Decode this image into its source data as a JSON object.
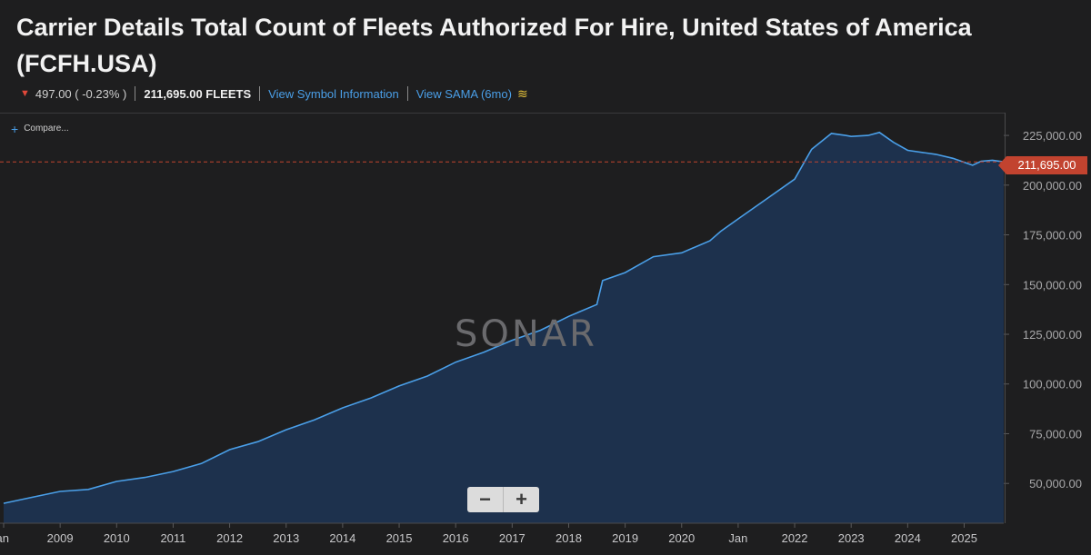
{
  "header": {
    "title": "Carrier Details Total Count of Fleets Authorized For Hire, United States of America (FCFH.USA)",
    "change": "497.00 ( -0.23% )",
    "value_label": "211,695.00 FLEETS",
    "link_symbol": "View Symbol Information",
    "link_sama": "View SAMA (6mo)"
  },
  "toolbar": {
    "compare_label": "Compare..."
  },
  "watermark": "SONAR",
  "zoom": {
    "minus": "−",
    "plus": "+"
  },
  "colors": {
    "line": "#4a9fe8",
    "fill": "#1d3556",
    "current": "#c2432f",
    "down": "#e0483a"
  },
  "chart_data": {
    "type": "area",
    "title": "Carrier Details Total Count of Fleets Authorized For Hire, United States of America (FCFH.USA)",
    "ylabel": "FLEETS",
    "current_value": 211695,
    "current_label": "211,695.00",
    "ylim": [
      30000,
      236000
    ],
    "xlim": [
      2008.0,
      2025.7
    ],
    "y_ticks": [
      {
        "value": 50000,
        "label": "50,000.00"
      },
      {
        "value": 75000,
        "label": "75,000.00"
      },
      {
        "value": 100000,
        "label": "100,000.00"
      },
      {
        "value": 125000,
        "label": "125,000.00"
      },
      {
        "value": 150000,
        "label": "150,000.00"
      },
      {
        "value": 175000,
        "label": "175,000.00"
      },
      {
        "value": 200000,
        "label": "200,000.00"
      },
      {
        "value": 225000,
        "label": "225,000.00"
      }
    ],
    "x_ticks": [
      {
        "value": 2008.0,
        "label": "Jan"
      },
      {
        "value": 2009.0,
        "label": "2009"
      },
      {
        "value": 2010.0,
        "label": "2010"
      },
      {
        "value": 2011.0,
        "label": "2011"
      },
      {
        "value": 2012.0,
        "label": "2012"
      },
      {
        "value": 2013.0,
        "label": "2013"
      },
      {
        "value": 2014.0,
        "label": "2014"
      },
      {
        "value": 2015.0,
        "label": "2015"
      },
      {
        "value": 2016.0,
        "label": "2016"
      },
      {
        "value": 2017.0,
        "label": "2017"
      },
      {
        "value": 2018.0,
        "label": "2018"
      },
      {
        "value": 2019.0,
        "label": "2019"
      },
      {
        "value": 2020.0,
        "label": "2020"
      },
      {
        "value": 2021.0,
        "label": "Jan"
      },
      {
        "value": 2022.0,
        "label": "2022"
      },
      {
        "value": 2023.0,
        "label": "2023"
      },
      {
        "value": 2024.0,
        "label": "2024"
      },
      {
        "value": 2025.0,
        "label": "2025"
      }
    ],
    "series": [
      {
        "name": "FCFH.USA",
        "x": [
          2008.0,
          2008.5,
          2009.0,
          2009.5,
          2010.0,
          2010.5,
          2011.0,
          2011.5,
          2012.0,
          2012.5,
          2013.0,
          2013.5,
          2014.0,
          2014.5,
          2015.0,
          2015.5,
          2016.0,
          2016.5,
          2017.0,
          2017.5,
          2018.0,
          2018.5,
          2018.6,
          2019.0,
          2019.5,
          2020.0,
          2020.5,
          2020.7,
          2021.0,
          2021.5,
          2022.0,
          2022.3,
          2022.65,
          2022.9,
          2023.0,
          2023.3,
          2023.5,
          2023.75,
          2024.0,
          2024.5,
          2024.8,
          2025.0,
          2025.15,
          2025.3,
          2025.5,
          2025.7
        ],
        "y": [
          40000,
          43000,
          46000,
          47000,
          51000,
          53000,
          56000,
          60000,
          67000,
          71000,
          77000,
          82000,
          88000,
          93000,
          99000,
          104000,
          111000,
          116000,
          122000,
          127000,
          134000,
          140000,
          152000,
          156000,
          164000,
          166000,
          172000,
          177000,
          183000,
          193000,
          203000,
          218000,
          226000,
          225000,
          224500,
          225000,
          226500,
          221500,
          217500,
          215500,
          213500,
          211500,
          210000,
          212000,
          212500,
          211695
        ]
      }
    ]
  }
}
